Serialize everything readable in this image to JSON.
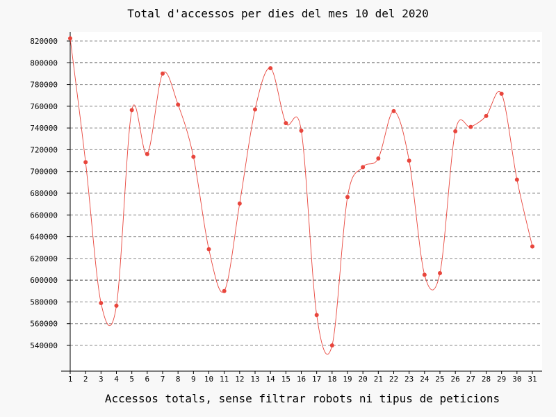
{
  "chart_data": {
    "type": "line",
    "title": "Total d'accessos per dies del mes 10 del 2020",
    "xlabel": "Accessos totals, sense filtrar robots ni tipus de peticions",
    "ylabel": "",
    "x": [
      1,
      2,
      3,
      4,
      5,
      6,
      7,
      8,
      9,
      10,
      11,
      12,
      13,
      14,
      15,
      16,
      17,
      18,
      19,
      20,
      21,
      22,
      23,
      24,
      25,
      26,
      27,
      28,
      29,
      30,
      31
    ],
    "series": [
      {
        "values": [
          822500,
          708500,
          579000,
          576500,
          756500,
          716000,
          790000,
          761500,
          713500,
          628500,
          590000,
          670500,
          757000,
          795000,
          744500,
          737500,
          568000,
          540000,
          676500,
          704000,
          712000,
          755500,
          710000,
          605000,
          606500,
          737000,
          741000,
          751000,
          771500,
          692500,
          631000
        ]
      }
    ],
    "yticks": [
      540000,
      560000,
      580000,
      600000,
      620000,
      640000,
      660000,
      680000,
      700000,
      720000,
      740000,
      760000,
      780000,
      800000,
      820000
    ],
    "emphasized_gridlines": [
      600000,
      700000,
      800000
    ],
    "ylim": [
      520000,
      830000
    ],
    "xlim": [
      1,
      31
    ],
    "grid": true,
    "legend": "none",
    "colors": {
      "line": "#e8453c",
      "marker": "#e8453c",
      "grid": "#888888",
      "grid_major": "#444444",
      "axis": "#000000",
      "plot_bg": "#ffffff",
      "page_bg": "#f8f8f8"
    }
  }
}
